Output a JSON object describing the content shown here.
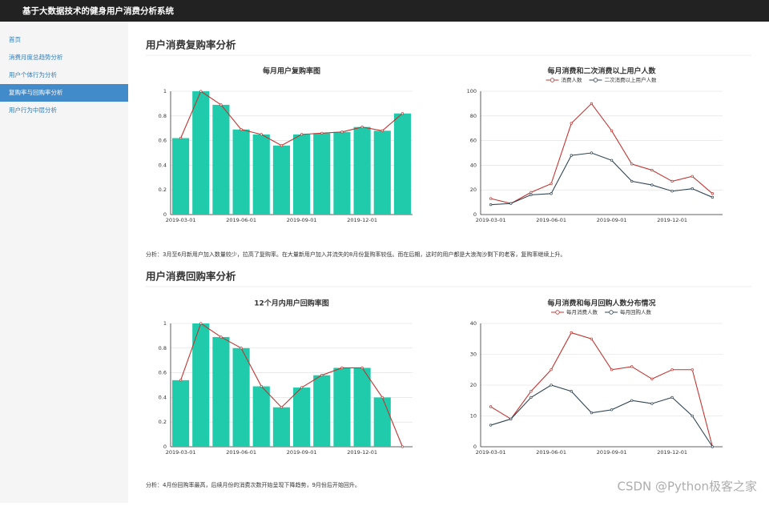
{
  "header": {
    "title": "基于大数据技术的健身用户消费分析系统"
  },
  "nav": [
    {
      "label": "首页",
      "active": false
    },
    {
      "label": "消费月度总趋势分析",
      "active": false
    },
    {
      "label": "用户个体行为分析",
      "active": false
    },
    {
      "label": "复购率与回购率分析",
      "active": true
    },
    {
      "label": "用户行为中层分析",
      "active": false
    }
  ],
  "sections": [
    {
      "title": "用户消费复购率分析",
      "analysis": "分析：3月至6月新用户加入数量较少，拉高了复购率。在大量新用户加入并流失的8月份复购率较低。而在后期，这时的用户都是大浪淘沙剩下的老客，复购率继续上升。"
    },
    {
      "title": "用户消费回购率分析",
      "analysis": "分析：4月份回购率最高，后续月份的消费次数开始呈现下降趋势，9月份后开始回升。"
    }
  ],
  "watermark": "CSDN @Python极客之家",
  "chart_data": [
    {
      "type": "bar",
      "title": "每月用户复购率图",
      "categories": [
        "2019-03-01",
        null,
        null,
        "2019-06-01",
        null,
        null,
        "2019-09-01",
        null,
        null,
        "2019-12-01",
        null,
        null
      ],
      "series": [
        {
          "type": "bar",
          "color": "#1fcbaa",
          "values": [
            0.62,
            1.0,
            0.89,
            0.69,
            0.65,
            0.56,
            0.65,
            0.66,
            0.67,
            0.71,
            0.68,
            0.82
          ]
        },
        {
          "type": "line",
          "color": "#c23531",
          "values": [
            0.62,
            1.0,
            0.89,
            0.69,
            0.65,
            0.56,
            0.65,
            0.66,
            0.67,
            0.71,
            0.68,
            0.82
          ]
        }
      ],
      "ylim": [
        0,
        1
      ],
      "yticks": [
        0,
        0.2,
        0.4,
        0.6,
        0.8,
        1
      ],
      "grid": true
    },
    {
      "type": "line",
      "title": "每月消费和二次消费以上用户人数",
      "categories": [
        "2019-03-01",
        null,
        null,
        "2019-06-01",
        null,
        null,
        "2019-09-01",
        null,
        null,
        "2019-12-01",
        null,
        null
      ],
      "series": [
        {
          "name": "消费人数",
          "color": "#c23531",
          "values": [
            13,
            9,
            18,
            25,
            74,
            90,
            68,
            41,
            36,
            27,
            31,
            17
          ]
        },
        {
          "name": "二次消费以上用户人数",
          "color": "#2f4554",
          "values": [
            8,
            9,
            16,
            17,
            48,
            50,
            44,
            27,
            24,
            19,
            21,
            14
          ]
        }
      ],
      "ylim": [
        0,
        100
      ],
      "yticks": [
        0,
        20,
        40,
        60,
        80,
        100
      ],
      "grid": true,
      "legend": "top"
    },
    {
      "type": "bar",
      "title": "12个月内用户回购率图",
      "categories": [
        "2019-03-01",
        null,
        null,
        "2019-06-01",
        null,
        null,
        "2019-09-01",
        null,
        null,
        "2019-12-01",
        null,
        null
      ],
      "series": [
        {
          "type": "bar",
          "color": "#1fcbaa",
          "values": [
            0.54,
            1.0,
            0.89,
            0.8,
            0.49,
            0.32,
            0.48,
            0.58,
            0.64,
            0.64,
            0.4,
            0
          ]
        },
        {
          "type": "line",
          "color": "#c23531",
          "values": [
            0.54,
            1.0,
            0.89,
            0.8,
            0.49,
            0.32,
            0.48,
            0.58,
            0.64,
            0.64,
            0.4,
            0
          ]
        }
      ],
      "ylim": [
        0,
        1
      ],
      "yticks": [
        0,
        0.2,
        0.4,
        0.6,
        0.8,
        1
      ],
      "grid": true
    },
    {
      "type": "line",
      "title": "每月消费和每月回购人数分布情况",
      "categories": [
        "2019-03-01",
        null,
        null,
        "2019-06-01",
        null,
        null,
        "2019-09-01",
        null,
        null,
        "2019-12-01",
        null,
        null
      ],
      "series": [
        {
          "name": "每月消费人数",
          "color": "#c23531",
          "values": [
            13,
            9,
            18,
            25,
            37,
            35,
            25,
            26,
            22,
            25,
            25,
            0
          ]
        },
        {
          "name": "每月回购人数",
          "color": "#2f4554",
          "values": [
            7,
            9,
            16,
            20,
            18,
            11,
            12,
            15,
            14,
            16,
            10,
            0
          ]
        }
      ],
      "ylim": [
        0,
        40
      ],
      "yticks": [
        0,
        10,
        20,
        30,
        40
      ],
      "grid": true,
      "legend": "top"
    }
  ]
}
